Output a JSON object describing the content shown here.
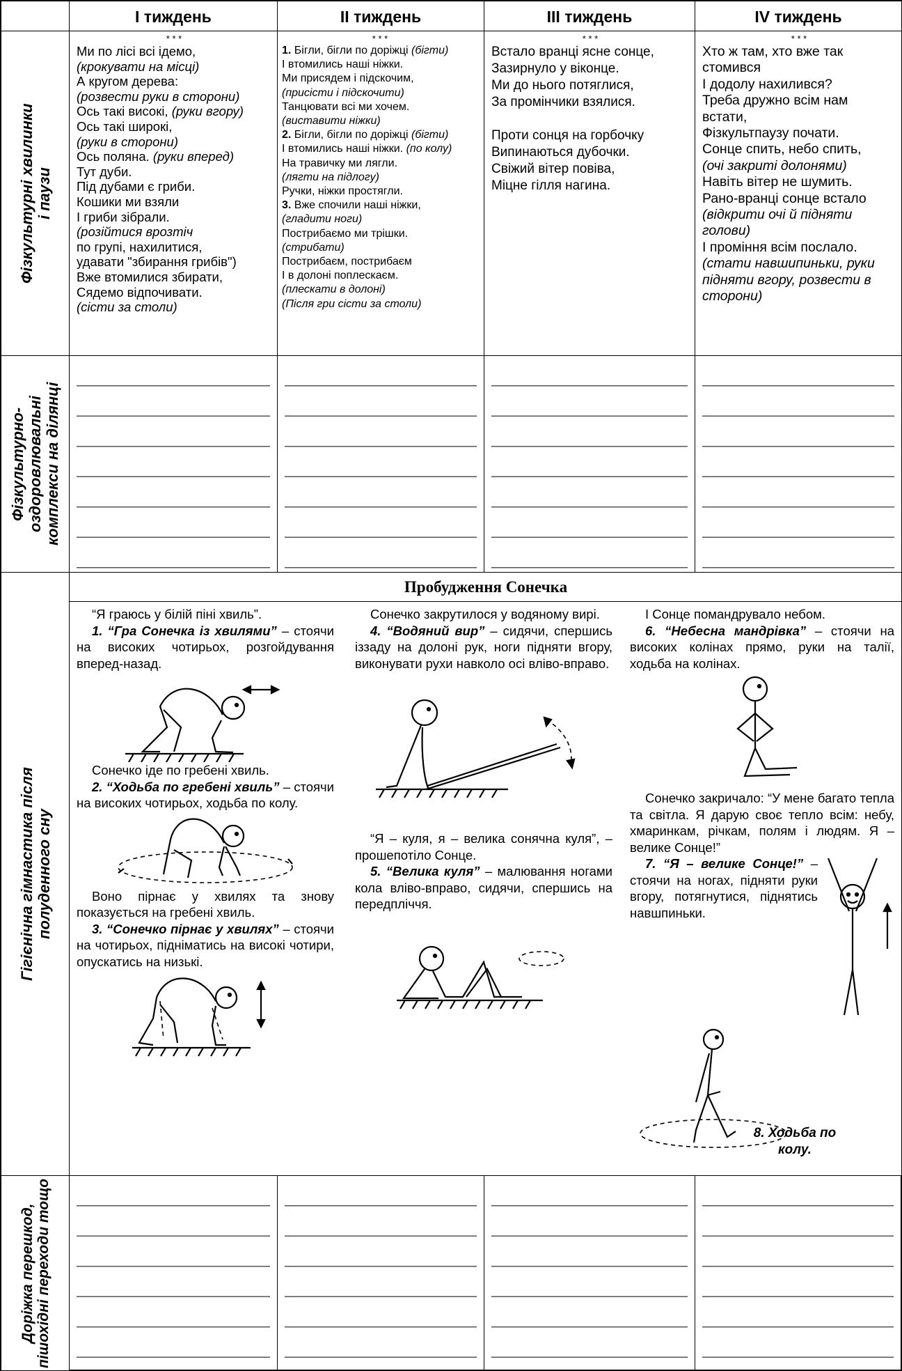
{
  "header": {
    "weeks": [
      "I тиждень",
      "II тиждень",
      "III тиждень",
      "IV тиждень"
    ]
  },
  "rows": [
    {
      "label": "Фізкультурні хвилинки і паузи",
      "poems": [
        {
          "mark": "* * *",
          "lines": [
            "Ми по лісі всі ідемо,",
            "(крокувати на місці)",
            "А кругом дерева:",
            "(розвести руки в сторони)",
            [
              "Ось такі високі,",
              "(руки вгору)"
            ],
            "Ось такі широкі,",
            "(руки в сторони)",
            [
              "Ось поляна.",
              "(руки вперед)"
            ],
            "Тут дуби.",
            "Під дубами є гриби.",
            "Кошики ми взяли",
            "І гриби зібрали.",
            "(розійтися врозтіч",
            "по групі, нахилитися,",
            "удавати \"збирання грибів\")",
            "Вже втомилися збирати,",
            "Сядемо відпочивати.",
            "(сісти за столи)"
          ]
        },
        {
          "mark": "* * *",
          "lines": [
            [
              "1.",
              "Бігли, бігли по доріжці",
              "(бігти)"
            ],
            "І втомились наші ніжки.",
            "Ми присядем і підскочим,",
            "(присісти і підскочити)",
            "Танцювати всі ми хочем.",
            "(виставити ніжки)",
            [
              "2.",
              "Бігли, бігли по доріжці",
              "(бігти)"
            ],
            [
              "І втомились наші ніжки.",
              "(по колу)"
            ],
            "На травичку ми лягли.",
            "(лягти на підлогу)",
            "Ручки, ніжки простягли.",
            [
              "3.",
              "Вже спочили наші ніжки,"
            ],
            "(гладити ноги)",
            "Пострибаємо ми трішки.",
            "(стрибати)",
            "Пострибаєм, пострибаєм",
            "І в долоні поплескаєм.",
            "(плескати в долоні)",
            "(Після гри сісти за столи)"
          ]
        },
        {
          "mark": "* * *",
          "lines": [
            "Встало вранці ясне сонце,",
            "Зазирнуло у віконце.",
            "Ми до нього потяглися,",
            "За промінчики взялися.",
            "Проти сонця на горбочку",
            "Випинаються дубочки.",
            "Свіжий вітер повіва,",
            "Міцне гілля нагина."
          ]
        },
        {
          "mark": "* * *",
          "lines": [
            "Хто ж там, хто вже так стомився",
            "І додолу нахилився?",
            "Треба дружно всім нам встати,",
            "Фізкультпаузу почати.",
            "Сонце спить, небо спить,",
            "(очі закриті долонями)",
            "Навіть вітер не шумить.",
            "Рано-вранці сонце встало",
            "(відкрити очі й підняти голови)",
            "І проміння всім послало.",
            "(стати навшипиньки, руки підняти вгору, розвести в сторони)"
          ]
        }
      ]
    },
    {
      "label": "Фізкультурно-оздоровлювальні комплекси на ділянці"
    },
    {
      "label": "Гігієнічна гімнастика після полуденного сну",
      "title": "Пробудження Сонечка",
      "columns": [
        [
          "“Я граюсь у білій піні хвиль”.",
          {
            "title": "1. “Гра Сонечка із хвилями”",
            "text": " – стоячи на високих чотирьох, розгойдування вперед-назад."
          },
          "Сонечко іде по гребені хвиль.",
          {
            "title": "2. “Ходьба по гребені хвиль”",
            "text": " – стоячи на високих чотирьох, ходьба по колу."
          },
          "Воно пірнає у хвилях та знову показується на гребені хвиль.",
          {
            "title": "3. “Сонечко пірнає у хвилях”",
            "text": " – стоячи на чотирьох, підніматись на високі чотири, опускатись на низькі."
          }
        ],
        [
          "Сонечко закрутилося у водяному вирі.",
          {
            "title": "4. “Водяний вир”",
            "text": " – сидячи, спершись іззаду на долоні рук, ноги підняти вгору, виконувати рухи навколо осі вліво-вправо."
          },
          "“Я – куля, я – велика сонячна куля”, – прошепотіло Сонце.",
          {
            "title": "5. “Велика куля”",
            "text": " – малювання ногами кола вліво-вправо, сидячи, спершись на передпліччя."
          }
        ],
        [
          "І Сонце помандрувало небом.",
          {
            "title": "6. “Небесна мандрівка”",
            "text": " – стоячи на високих колінах прямо, руки на талії, ходьба на колінах."
          },
          "Сонечко закричало: “У мене багато тепла та світла. Я дарую своє тепло всім: небу, хмаринкам, річкам, полям і людям. Я – велике Сонце!”",
          {
            "title": "7. “Я – велике Сонце!”",
            "text": " – стоячи на ногах, підняти руки вгору, потягнутися, піднятись навшпиньки."
          },
          "8. Ходьба по колу."
        ]
      ]
    },
    {
      "label": "Доріжка перешкод, пішохідні переходи тощо"
    }
  ]
}
